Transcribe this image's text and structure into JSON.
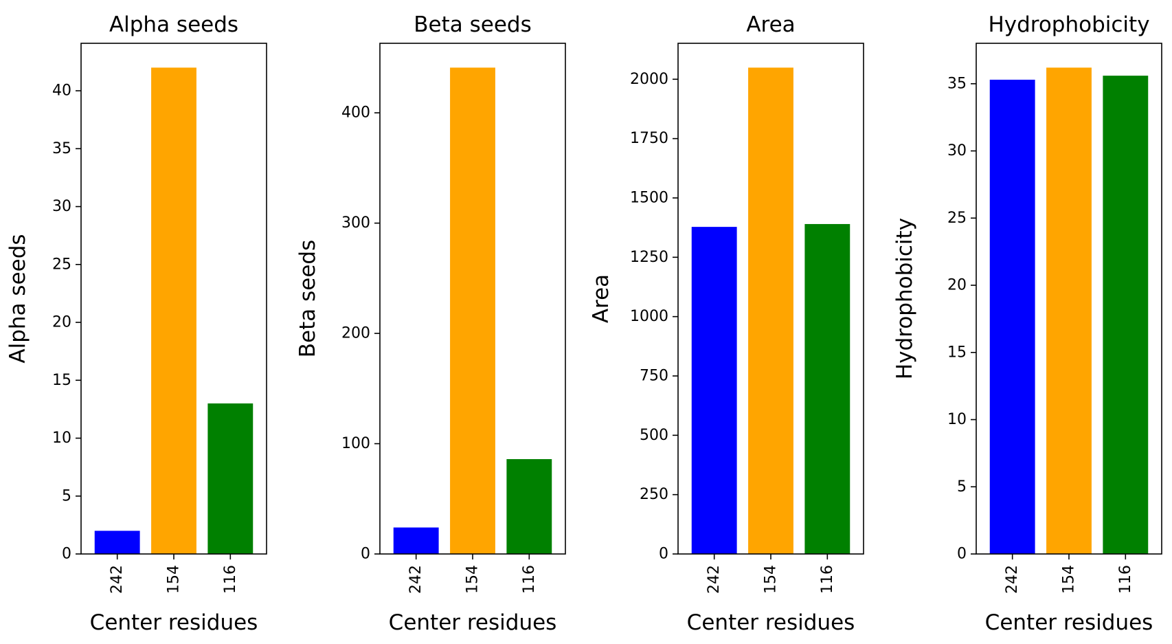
{
  "chart_data": [
    {
      "type": "bar",
      "title": "Alpha seeds",
      "xlabel": "Center residues",
      "ylabel": "Alpha seeds",
      "categories": [
        "242",
        "154",
        "116"
      ],
      "values": [
        2,
        42,
        13
      ],
      "colors": [
        "#0000ff",
        "#ffa500",
        "#008000"
      ],
      "ylim": [
        0,
        44.1
      ],
      "yticks": [
        0,
        5,
        10,
        15,
        20,
        25,
        30,
        35,
        40
      ],
      "ytick_labels": [
        "0",
        "5",
        "10",
        "15",
        "20",
        "25",
        "30",
        "35",
        "40"
      ],
      "grid": false
    },
    {
      "type": "bar",
      "title": "Beta seeds",
      "xlabel": "Center residues",
      "ylabel": "Beta seeds",
      "categories": [
        "242",
        "154",
        "116"
      ],
      "values": [
        24,
        441,
        86
      ],
      "colors": [
        "#0000ff",
        "#ffa500",
        "#008000"
      ],
      "ylim": [
        0,
        463.05
      ],
      "yticks": [
        0,
        100,
        200,
        300,
        400
      ],
      "ytick_labels": [
        "0",
        "100",
        "200",
        "300",
        "400"
      ],
      "grid": false
    },
    {
      "type": "bar",
      "title": "Area",
      "xlabel": "Center residues",
      "ylabel": "Area",
      "categories": [
        "242",
        "154",
        "116"
      ],
      "values": [
        1378,
        2049,
        1390
      ],
      "colors": [
        "#0000ff",
        "#ffa500",
        "#008000"
      ],
      "ylim": [
        0,
        2151.45
      ],
      "yticks": [
        0,
        250,
        500,
        750,
        1000,
        1250,
        1500,
        1750,
        2000
      ],
      "ytick_labels": [
        "0",
        "250",
        "500",
        "750",
        "1000",
        "1250",
        "1500",
        "1750",
        "2000"
      ],
      "grid": false
    },
    {
      "type": "bar",
      "title": "Hydrophobicity",
      "xlabel": "Center residues",
      "ylabel": "Hydrophobicity",
      "categories": [
        "242",
        "154",
        "116"
      ],
      "values": [
        35.3,
        36.2,
        35.6
      ],
      "colors": [
        "#0000ff",
        "#ffa500",
        "#008000"
      ],
      "ylim": [
        0,
        38.01
      ],
      "yticks": [
        0,
        5,
        10,
        15,
        20,
        25,
        30,
        35
      ],
      "ytick_labels": [
        "0",
        "5",
        "10",
        "15",
        "20",
        "25",
        "30",
        "35"
      ],
      "grid": false
    }
  ]
}
